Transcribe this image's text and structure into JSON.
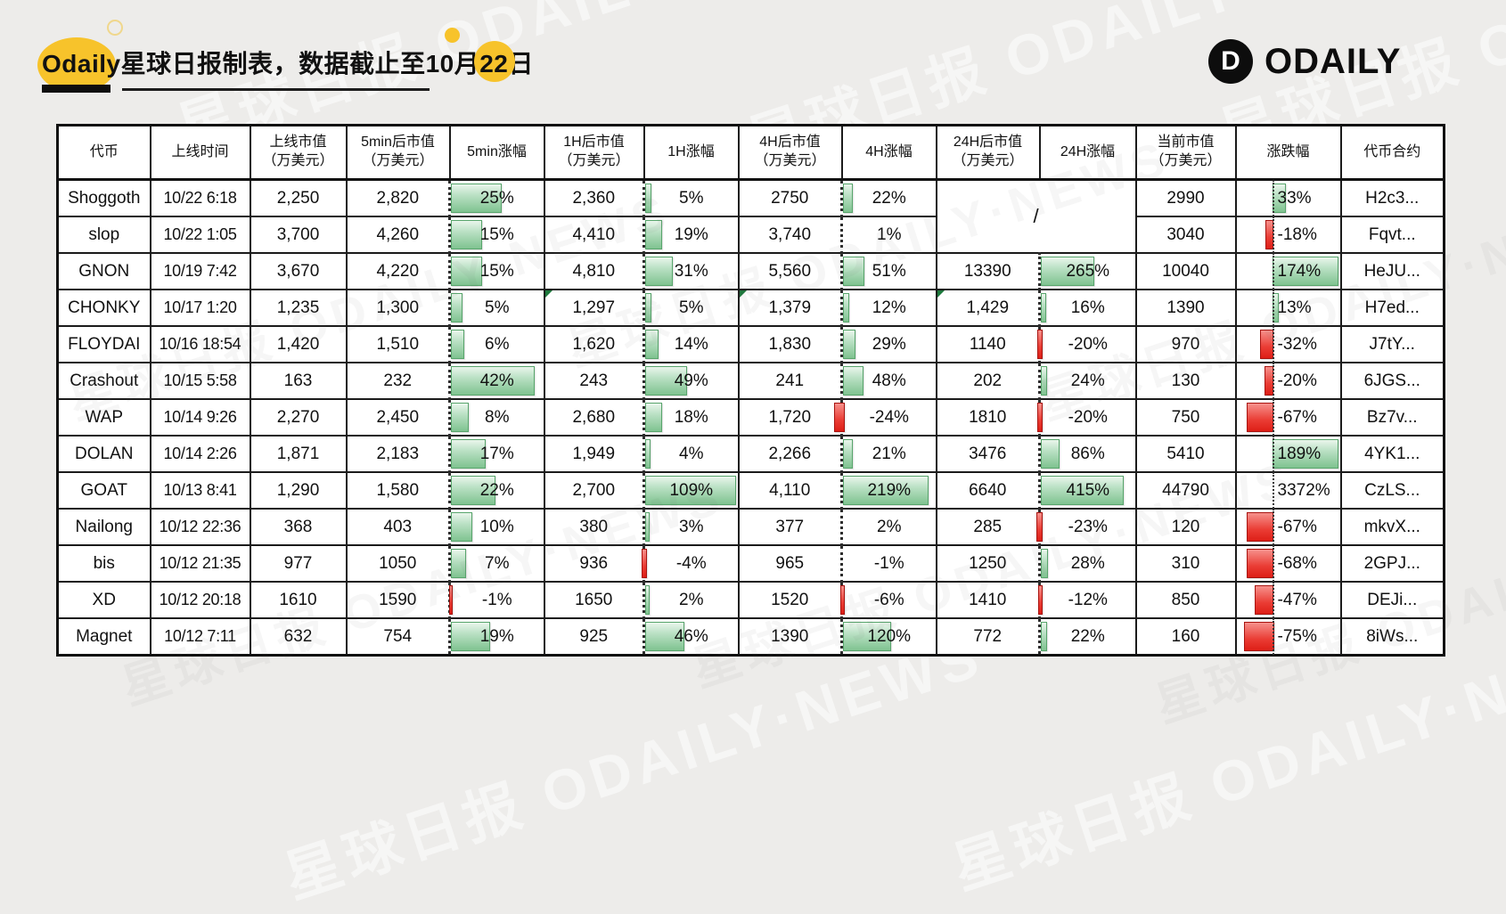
{
  "title": {
    "full": "Odaily星球日报制表，数据截止至10月22日",
    "prefix": "Odaily星球日报制表，数据截止至10月",
    "day": "22",
    "suffix": "日"
  },
  "brand": {
    "name": "ODAILY",
    "monogram": "D"
  },
  "watermark": {
    "full": "星球日报 ODAILY·NEWS"
  },
  "colors": {
    "positive": "#7fc390",
    "negative": "#e23b34",
    "accent_yellow": "#f7c32b"
  },
  "chart_data": {
    "type": "table",
    "title": "Odaily星球日报制表，数据截止至10月22日",
    "merged_placeholder": "/",
    "columns": [
      {
        "id": "token",
        "l1": "代币",
        "l2": ""
      },
      {
        "id": "time",
        "l1": "上线时间",
        "l2": ""
      },
      {
        "id": "mc_launch",
        "l1": "上线市值",
        "l2": "（万美元）"
      },
      {
        "id": "mc_5min",
        "l1": "5min后市值",
        "l2": "（万美元）"
      },
      {
        "id": "chg_5min",
        "l1": "5min涨幅",
        "l2": ""
      },
      {
        "id": "mc_1h",
        "l1": "1H后市值",
        "l2": "（万美元）"
      },
      {
        "id": "chg_1h",
        "l1": "1H涨幅",
        "l2": ""
      },
      {
        "id": "mc_4h",
        "l1": "4H后市值",
        "l2": "（万美元）"
      },
      {
        "id": "chg_4h",
        "l1": "4H涨幅",
        "l2": ""
      },
      {
        "id": "mc_24h",
        "l1": "24H后市值",
        "l2": "（万美元）"
      },
      {
        "id": "chg_24h",
        "l1": "24H涨幅",
        "l2": ""
      },
      {
        "id": "mc_now",
        "l1": "当前市值",
        "l2": "（万美元）"
      },
      {
        "id": "chg_now",
        "l1": "涨跌幅",
        "l2": ""
      },
      {
        "id": "contract",
        "l1": "代币合约",
        "l2": ""
      }
    ],
    "rows": [
      {
        "token": "Shoggoth",
        "time": "10/22 6:18",
        "mc_launch": "2,250",
        "mc_5min": "2,820",
        "chg_5min": "25%",
        "mc_1h": "2,360",
        "chg_1h": "5%",
        "mc_4h": "2750",
        "chg_4h": "22%",
        "mc_24h": null,
        "chg_24h": null,
        "mc_now": "2990",
        "chg_now": "33%",
        "contract": "H2c3..."
      },
      {
        "token": "slop",
        "time": "10/22 1:05",
        "mc_launch": "3,700",
        "mc_5min": "4,260",
        "chg_5min": "15%",
        "mc_1h": "4,410",
        "chg_1h": "19%",
        "mc_4h": "3,740",
        "chg_4h": "1%",
        "mc_24h": null,
        "chg_24h": null,
        "mc_now": "3040",
        "chg_now": "-18%",
        "contract": "Fqvt..."
      },
      {
        "token": "GNON",
        "time": "10/19 7:42",
        "mc_launch": "3,670",
        "mc_5min": "4,220",
        "chg_5min": "15%",
        "mc_1h": "4,810",
        "chg_1h": "31%",
        "mc_4h": "5,560",
        "chg_4h": "51%",
        "mc_24h": "13390",
        "chg_24h": "265%",
        "mc_now": "10040",
        "chg_now": "174%",
        "contract": "HeJU..."
      },
      {
        "token": "CHONKY",
        "time": "10/17 1:20",
        "mc_launch": "1,235",
        "mc_5min": "1,300",
        "chg_5min": "5%",
        "mc_1h": "1,297",
        "chg_1h": "5%",
        "mc_4h": "1,379",
        "chg_4h": "12%",
        "mc_24h": "1,429",
        "chg_24h": "16%",
        "mc_now": "1390",
        "chg_now": "13%",
        "contract": "H7ed...",
        "corners": [
          "mc_1h",
          "mc_4h",
          "mc_24h"
        ]
      },
      {
        "token": "FLOYDAI",
        "time": "10/16 18:54",
        "mc_launch": "1,420",
        "mc_5min": "1,510",
        "chg_5min": "6%",
        "mc_1h": "1,620",
        "chg_1h": "14%",
        "mc_4h": "1,830",
        "chg_4h": "29%",
        "mc_24h": "1140",
        "chg_24h": "-20%",
        "mc_now": "970",
        "chg_now": "-32%",
        "contract": "J7tY..."
      },
      {
        "token": "Crashout",
        "time": "10/15 5:58",
        "mc_launch": "163",
        "mc_5min": "232",
        "chg_5min": "42%",
        "mc_1h": "243",
        "chg_1h": "49%",
        "mc_4h": "241",
        "chg_4h": "48%",
        "mc_24h": "202",
        "chg_24h": "24%",
        "mc_now": "130",
        "chg_now": "-20%",
        "contract": "6JGS..."
      },
      {
        "token": "WAP",
        "time": "10/14 9:26",
        "mc_launch": "2,270",
        "mc_5min": "2,450",
        "chg_5min": "8%",
        "mc_1h": "2,680",
        "chg_1h": "18%",
        "mc_4h": "1,720",
        "chg_4h": "-24%",
        "mc_24h": "1810",
        "chg_24h": "-20%",
        "mc_now": "750",
        "chg_now": "-67%",
        "contract": "Bz7v..."
      },
      {
        "token": "DOLAN",
        "time": "10/14 2:26",
        "mc_launch": "1,871",
        "mc_5min": "2,183",
        "chg_5min": "17%",
        "mc_1h": "1,949",
        "chg_1h": "4%",
        "mc_4h": "2,266",
        "chg_4h": "21%",
        "mc_24h": "3476",
        "chg_24h": "86%",
        "mc_now": "5410",
        "chg_now": "189%",
        "contract": "4YK1..."
      },
      {
        "token": "GOAT",
        "time": "10/13 8:41",
        "mc_launch": "1,290",
        "mc_5min": "1,580",
        "chg_5min": "22%",
        "mc_1h": "2,700",
        "chg_1h": "109%",
        "mc_4h": "4,110",
        "chg_4h": "219%",
        "mc_24h": "6640",
        "chg_24h": "415%",
        "mc_now": "44790",
        "chg_now": "3372%",
        "chg_now_bar": false,
        "contract": "CzLS..."
      },
      {
        "token": "Nailong",
        "time": "10/12 22:36",
        "mc_launch": "368",
        "mc_5min": "403",
        "chg_5min": "10%",
        "mc_1h": "380",
        "chg_1h": "3%",
        "mc_4h": "377",
        "chg_4h": "2%",
        "mc_24h": "285",
        "chg_24h": "-23%",
        "mc_now": "120",
        "chg_now": "-67%",
        "contract": "mkvX..."
      },
      {
        "token": "bis",
        "time": "10/12 21:35",
        "mc_launch": "977",
        "mc_5min": "1050",
        "chg_5min": "7%",
        "mc_1h": "936",
        "chg_1h": "-4%",
        "mc_4h": "965",
        "chg_4h": "-1%",
        "mc_24h": "1250",
        "chg_24h": "28%",
        "mc_now": "310",
        "chg_now": "-68%",
        "contract": "2GPJ..."
      },
      {
        "token": "XD",
        "time": "10/12 20:18",
        "mc_launch": "1610",
        "mc_5min": "1590",
        "chg_5min": "-1%",
        "mc_1h": "1650",
        "chg_1h": "2%",
        "mc_4h": "1520",
        "chg_4h": "-6%",
        "mc_24h": "1410",
        "chg_24h": "-12%",
        "mc_now": "850",
        "chg_now": "-47%",
        "contract": "DEJi..."
      },
      {
        "token": "Magnet",
        "time": "10/12 7:11",
        "mc_launch": "632",
        "mc_5min": "754",
        "chg_5min": "19%",
        "mc_1h": "925",
        "chg_1h": "46%",
        "mc_4h": "1390",
        "chg_4h": "120%",
        "mc_24h": "772",
        "chg_24h": "22%",
        "mc_now": "160",
        "chg_now": "-75%",
        "contract": "8iWs..."
      }
    ]
  }
}
